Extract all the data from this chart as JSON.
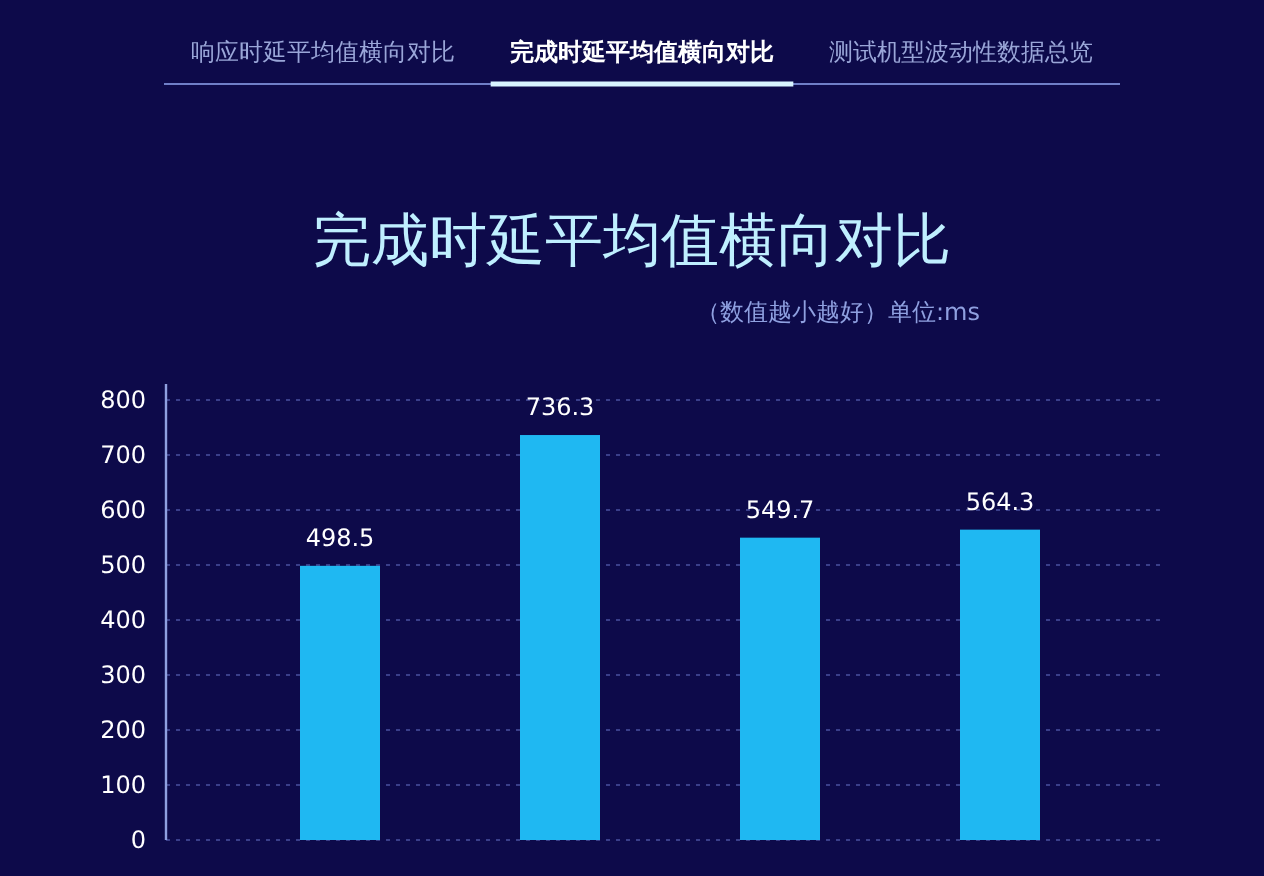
{
  "chart_data": {
    "type": "bar",
    "title": "完成时延平均值横向对比",
    "subtitle": "（数值越小越好）单位:ms",
    "annotations": [
      "响应时延平均值横向对比",
      "完成时延平均值横向对比",
      "测试机型波动性数据总览"
    ],
    "categories": [
      null,
      null,
      null,
      null
    ],
    "values": [
      498.5,
      736.3,
      549.7,
      564.3
    ],
    "color": "#1fb8f2",
    "ylim": [
      0,
      800
    ],
    "yticks": [
      0,
      100,
      200,
      300,
      400,
      500,
      600,
      700,
      800
    ],
    "grid": "y",
    "data_labels": true
  }
}
